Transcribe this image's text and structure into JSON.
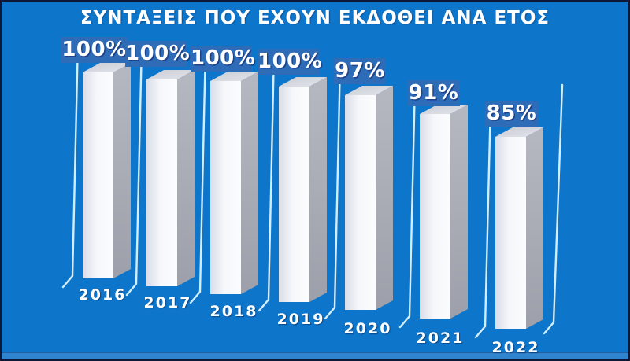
{
  "title": "ΣΥΝΤΑΞΕΙΣ ΠΟΥ ΕΧΟΥΝ ΕΚΔΟΘΕΙ ΑΝΑ ΕΤΟΣ",
  "colors": {
    "background": "#0d75ca",
    "border": "#0e1838",
    "badge_blue": "#2f6cb8",
    "text_white": "#ffffff",
    "bar_front_light": "#f6f7fa",
    "bar_front_shade": "#d9dde8",
    "bar_side_gray": "#a8aab4",
    "bar_top_gray": "#d6d9e0",
    "axis_line": "#d2eefb",
    "footer_strip": "#2f84cf"
  },
  "chart_data": {
    "type": "bar",
    "title": "ΣΥΝΤΑΞΕΙΣ ΠΟΥ ΕΧΟΥΝ ΕΚΔΟΘΕΙ ΑΝΑ ΕΤΟΣ",
    "categories": [
      "2016",
      "2017",
      "2018",
      "2019",
      "2020",
      "2021",
      "2022"
    ],
    "values": [
      100,
      100,
      100,
      100,
      97,
      91,
      85
    ],
    "value_labels": [
      "100%",
      "100%",
      "100%",
      "100%",
      "97%",
      "91%",
      "85%"
    ],
    "unit": "%",
    "xlabel": "",
    "ylabel": "",
    "ylim": [
      0,
      100
    ],
    "grid": false,
    "legend": false,
    "style": "3d-columns, staircase layout descending left-to-right, one light axis line per column plus one trailing line"
  }
}
